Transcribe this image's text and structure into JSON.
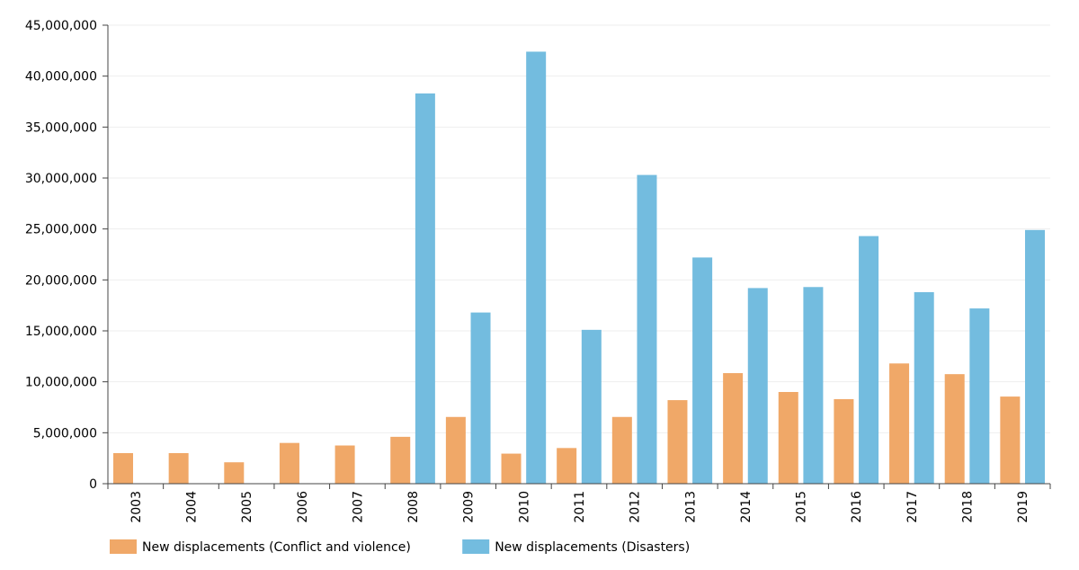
{
  "chart_data": {
    "type": "bar",
    "title": "",
    "xlabel": "",
    "ylabel": "",
    "ylim": [
      0,
      45000000
    ],
    "yticks": [
      0,
      5000000,
      10000000,
      15000000,
      20000000,
      25000000,
      30000000,
      35000000,
      40000000,
      45000000
    ],
    "ytick_labels": [
      "0",
      "5,000,000",
      "10,000,000",
      "15,000,000",
      "20,000,000",
      "25,000,000",
      "30,000,000",
      "35,000,000",
      "40,000,000",
      "45,000,000"
    ],
    "grid": true,
    "legend_position": "bottom-left",
    "categories": [
      "2003",
      "2004",
      "2005",
      "2006",
      "2007",
      "2008",
      "2009",
      "2010",
      "2011",
      "2012",
      "2013",
      "2014",
      "2015",
      "2016",
      "2017",
      "2018",
      "2019"
    ],
    "series": [
      {
        "name": "New displacements (Conflict and violence)",
        "color": "#f0a868",
        "values": [
          3000000,
          3000000,
          2100000,
          4000000,
          3750000,
          4600000,
          6550000,
          2950000,
          3500000,
          6550000,
          8200000,
          10850000,
          9000000,
          8300000,
          11800000,
          10750000,
          8550000
        ]
      },
      {
        "name": "New displacements (Disasters)",
        "color": "#73bcdf",
        "values": [
          0,
          0,
          0,
          0,
          0,
          38300000,
          16800000,
          42400000,
          15100000,
          30300000,
          22200000,
          19200000,
          19300000,
          24300000,
          18800000,
          17200000,
          24900000
        ]
      }
    ]
  }
}
